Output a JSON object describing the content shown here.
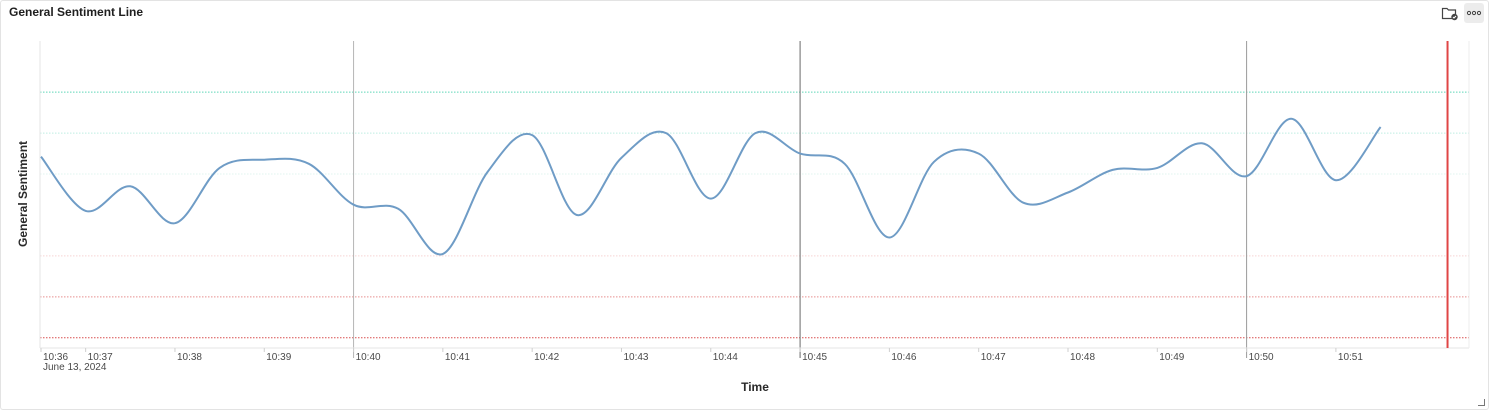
{
  "panel": {
    "title": "General Sentiment Line",
    "icons": {
      "save": "folder-check-icon",
      "more": "more-horizontal-icon"
    }
  },
  "chart_data": {
    "type": "line",
    "title": "General Sentiment Line",
    "xlabel": "Time",
    "ylabel": "General Sentiment",
    "date_label": "June 13, 2024",
    "x_tick_labels": [
      "10:36",
      "10:37",
      "10:38",
      "10:39",
      "10:40",
      "10:41",
      "10:42",
      "10:43",
      "10:44",
      "10:45",
      "10:46",
      "10:47",
      "10:48",
      "10:49",
      "10:50",
      "10:51"
    ],
    "x_tick_minutes": [
      36.0,
      36.5,
      37.5,
      38.5,
      39.5,
      40.5,
      41.5,
      42.5,
      43.5,
      44.5,
      45.5,
      46.5,
      47.5,
      48.5,
      49.5,
      50.5
    ],
    "xlim": [
      36.0,
      51.8
    ],
    "series": [
      {
        "color": "#6f9cc6",
        "x": [
          36.0,
          36.5,
          37.0,
          37.5,
          38.0,
          38.5,
          39.0,
          39.5,
          40.0,
          40.5,
          41.0,
          41.5,
          42.0,
          42.5,
          43.0,
          43.5,
          44.0,
          44.5,
          45.0,
          45.5,
          46.0,
          46.5,
          47.0,
          47.5,
          48.0,
          48.5,
          49.0,
          49.5,
          50.0,
          50.5,
          51.0
        ],
        "y": [
          0.37,
          -0.16,
          0.08,
          -0.28,
          0.26,
          0.34,
          0.3,
          -0.1,
          -0.14,
          -0.58,
          0.22,
          0.58,
          -0.2,
          0.36,
          0.6,
          -0.04,
          0.6,
          0.4,
          0.3,
          -0.42,
          0.32,
          0.4,
          -0.08,
          0.02,
          0.24,
          0.26,
          0.5,
          0.18,
          0.74,
          0.14,
          0.66
        ]
      }
    ],
    "ylim": [
      -1.5,
      1.5
    ],
    "reference_lines": [
      {
        "y": 1.0,
        "color": "#5fd6b8",
        "style": "dotted"
      },
      {
        "y": 0.6,
        "color": "#bfeee2",
        "style": "dotted"
      },
      {
        "y": 0.2,
        "color": "#e0f5ef",
        "style": "dotted"
      },
      {
        "y": -0.6,
        "color": "#f6d4d4",
        "style": "dotted"
      },
      {
        "y": -1.0,
        "color": "#e78f8f",
        "style": "dotted"
      },
      {
        "y": -1.4,
        "color": "#d94f4f",
        "style": "dotted"
      }
    ],
    "vertical_markers": [
      {
        "x": 39.5,
        "color": "#b5b5b5"
      },
      {
        "x": 44.5,
        "color": "#6a6a6a"
      },
      {
        "x": 49.5,
        "color": "#9a9a9a"
      }
    ],
    "now_marker": {
      "x": 51.75,
      "color": "#e04545"
    },
    "grid": false,
    "legend": "none"
  }
}
